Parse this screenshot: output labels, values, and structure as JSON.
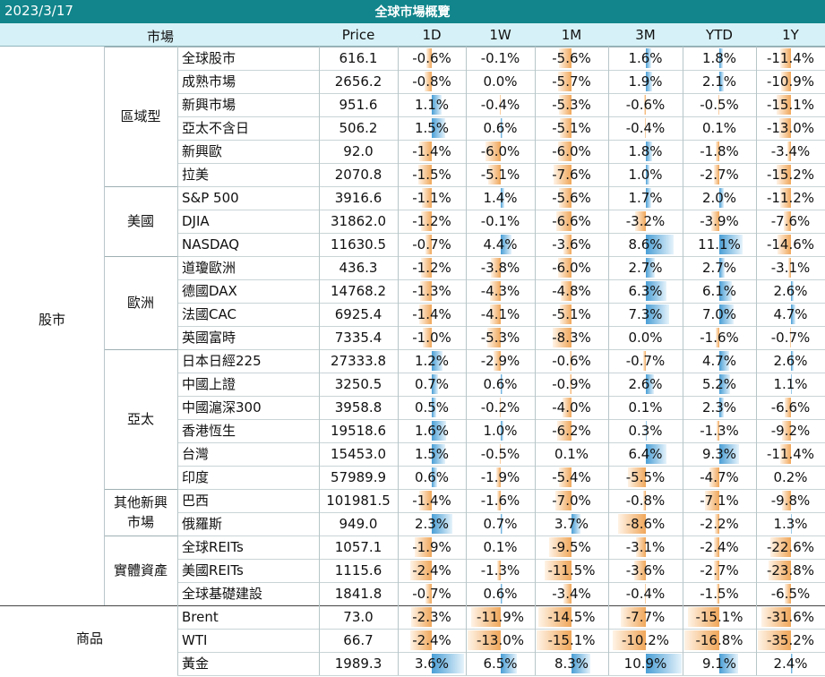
{
  "date": "2023/3/17",
  "title": "全球市場概覽",
  "headers": {
    "market": "市場",
    "price": "Price",
    "d1": "1D",
    "w1": "1W",
    "m1": "1M",
    "m3": "3M",
    "ytd": "YTD",
    "y1": "1Y"
  },
  "section_stocks": "股市",
  "section_commodities": "商品",
  "groups": [
    "區域型",
    "美國",
    "歐洲",
    "亞太",
    "其他新興\n市場",
    "實體資產"
  ],
  "rows": [
    {
      "name": "全球股市",
      "price": "616.1",
      "d1": "-0.6%",
      "w1": "-0.1%",
      "m1": "-5.6%",
      "m3": "1.6%",
      "ytd": "1.8%",
      "y1": "-11.4%"
    },
    {
      "name": "成熟市場",
      "price": "2656.2",
      "d1": "-0.8%",
      "w1": "0.0%",
      "m1": "-5.7%",
      "m3": "1.9%",
      "ytd": "2.1%",
      "y1": "-10.9%"
    },
    {
      "name": "新興市場",
      "price": "951.6",
      "d1": "1.1%",
      "w1": "-0.4%",
      "m1": "-5.3%",
      "m3": "-0.6%",
      "ytd": "-0.5%",
      "y1": "-15.1%"
    },
    {
      "name": "亞太不含日",
      "price": "506.2",
      "d1": "1.5%",
      "w1": "0.6%",
      "m1": "-5.1%",
      "m3": "-0.4%",
      "ytd": "0.1%",
      "y1": "-13.0%"
    },
    {
      "name": "新興歐",
      "price": "92.0",
      "d1": "-1.4%",
      "w1": "-6.0%",
      "m1": "-6.0%",
      "m3": "1.8%",
      "ytd": "-1.8%",
      "y1": "-3.4%"
    },
    {
      "name": "拉美",
      "price": "2070.8",
      "d1": "-1.5%",
      "w1": "-5.1%",
      "m1": "-7.6%",
      "m3": "1.0%",
      "ytd": "-2.7%",
      "y1": "-15.2%"
    },
    {
      "name": "S&P 500",
      "price": "3916.6",
      "d1": "-1.1%",
      "w1": "1.4%",
      "m1": "-5.6%",
      "m3": "1.7%",
      "ytd": "2.0%",
      "y1": "-11.2%"
    },
    {
      "name": "DJIA",
      "price": "31862.0",
      "d1": "-1.2%",
      "w1": "-0.1%",
      "m1": "-6.6%",
      "m3": "-3.2%",
      "ytd": "-3.9%",
      "y1": "-7.6%"
    },
    {
      "name": "NASDAQ",
      "price": "11630.5",
      "d1": "-0.7%",
      "w1": "4.4%",
      "m1": "-3.6%",
      "m3": "8.6%",
      "ytd": "11.1%",
      "y1": "-14.6%"
    },
    {
      "name": "道瓊歐洲",
      "price": "436.3",
      "d1": "-1.2%",
      "w1": "-3.8%",
      "m1": "-6.0%",
      "m3": "2.7%",
      "ytd": "2.7%",
      "y1": "-3.1%"
    },
    {
      "name": "德國DAX",
      "price": "14768.2",
      "d1": "-1.3%",
      "w1": "-4.3%",
      "m1": "-4.8%",
      "m3": "6.3%",
      "ytd": "6.1%",
      "y1": "2.6%"
    },
    {
      "name": "法國CAC",
      "price": "6925.4",
      "d1": "-1.4%",
      "w1": "-4.1%",
      "m1": "-5.1%",
      "m3": "7.3%",
      "ytd": "7.0%",
      "y1": "4.7%"
    },
    {
      "name": "英國富時",
      "price": "7335.4",
      "d1": "-1.0%",
      "w1": "-5.3%",
      "m1": "-8.3%",
      "m3": "0.0%",
      "ytd": "-1.6%",
      "y1": "-0.7%"
    },
    {
      "name": "日本日經225",
      "price": "27333.8",
      "d1": "1.2%",
      "w1": "-2.9%",
      "m1": "-0.6%",
      "m3": "-0.7%",
      "ytd": "4.7%",
      "y1": "2.6%"
    },
    {
      "name": "中國上證",
      "price": "3250.5",
      "d1": "0.7%",
      "w1": "0.6%",
      "m1": "-0.9%",
      "m3": "2.6%",
      "ytd": "5.2%",
      "y1": "1.1%"
    },
    {
      "name": "中國滬深300",
      "price": "3958.8",
      "d1": "0.5%",
      "w1": "-0.2%",
      "m1": "-4.0%",
      "m3": "0.1%",
      "ytd": "2.3%",
      "y1": "-6.6%"
    },
    {
      "name": "香港恆生",
      "price": "19518.6",
      "d1": "1.6%",
      "w1": "1.0%",
      "m1": "-6.2%",
      "m3": "0.3%",
      "ytd": "-1.3%",
      "y1": "-9.2%"
    },
    {
      "name": "台灣",
      "price": "15453.0",
      "d1": "1.5%",
      "w1": "-0.5%",
      "m1": "0.1%",
      "m3": "6.4%",
      "ytd": "9.3%",
      "y1": "-11.4%"
    },
    {
      "name": "印度",
      "price": "57989.9",
      "d1": "0.6%",
      "w1": "-1.9%",
      "m1": "-5.4%",
      "m3": "-5.5%",
      "ytd": "-4.7%",
      "y1": "0.2%"
    },
    {
      "name": "巴西",
      "price": "101981.5",
      "d1": "-1.4%",
      "w1": "-1.6%",
      "m1": "-7.0%",
      "m3": "-0.8%",
      "ytd": "-7.1%",
      "y1": "-9.8%"
    },
    {
      "name": "俄羅斯",
      "price": "949.0",
      "d1": "2.3%",
      "w1": "0.7%",
      "m1": "3.7%",
      "m3": "-8.6%",
      "ytd": "-2.2%",
      "y1": "1.3%"
    },
    {
      "name": "全球REITs",
      "price": "1057.1",
      "d1": "-1.9%",
      "w1": "0.1%",
      "m1": "-9.5%",
      "m3": "-3.1%",
      "ytd": "-2.4%",
      "y1": "-22.6%"
    },
    {
      "name": "美國REITs",
      "price": "1115.6",
      "d1": "-2.4%",
      "w1": "-1.3%",
      "m1": "-11.5%",
      "m3": "-3.6%",
      "ytd": "-2.7%",
      "y1": "-23.8%"
    },
    {
      "name": "全球基礎建設",
      "price": "1841.8",
      "d1": "-0.7%",
      "w1": "0.6%",
      "m1": "-3.4%",
      "m3": "-0.4%",
      "ytd": "-1.5%",
      "y1": "-6.5%"
    },
    {
      "name": "Brent",
      "price": "73.0",
      "d1": "-2.3%",
      "w1": "-11.9%",
      "m1": "-14.5%",
      "m3": "-7.7%",
      "ytd": "-15.1%",
      "y1": "-31.6%"
    },
    {
      "name": "WTI",
      "price": "66.7",
      "d1": "-2.4%",
      "w1": "-13.0%",
      "m1": "-15.1%",
      "m3": "-10.2%",
      "ytd": "-16.8%",
      "y1": "-35.2%"
    },
    {
      "name": "黃金",
      "price": "1989.3",
      "d1": "3.6%",
      "w1": "6.5%",
      "m1": "8.3%",
      "m3": "10.9%",
      "ytd": "9.1%",
      "y1": "2.4%"
    }
  ],
  "colors": {
    "title_bg": "#11858b",
    "header_bg": "#d6f1f7",
    "negative_bar": "#f0a75a",
    "positive_bar": "#4a9fd6"
  }
}
